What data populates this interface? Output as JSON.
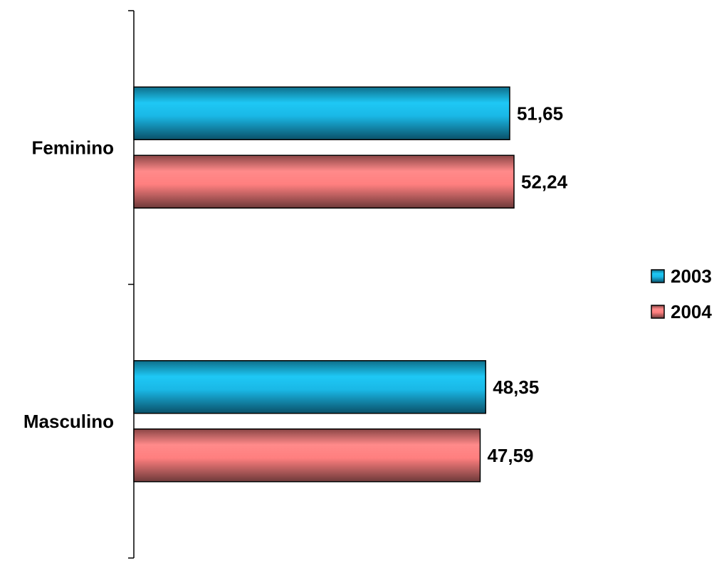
{
  "chart_data": {
    "type": "bar",
    "orientation": "horizontal",
    "categories": [
      "Feminino",
      "Masculino"
    ],
    "series": [
      {
        "name": "2003",
        "values": [
          51.65,
          48.35
        ],
        "labels": [
          "51,65",
          "48,35"
        ],
        "color": "#1AB8E6"
      },
      {
        "name": "2004",
        "values": [
          52.24,
          47.59
        ],
        "labels": [
          "52,24",
          "47,59"
        ],
        "color": "#FF7F7F"
      }
    ],
    "title": "",
    "xlabel": "",
    "ylabel": "",
    "xlim": [
      0,
      70
    ],
    "grid": false,
    "legend": "right"
  }
}
